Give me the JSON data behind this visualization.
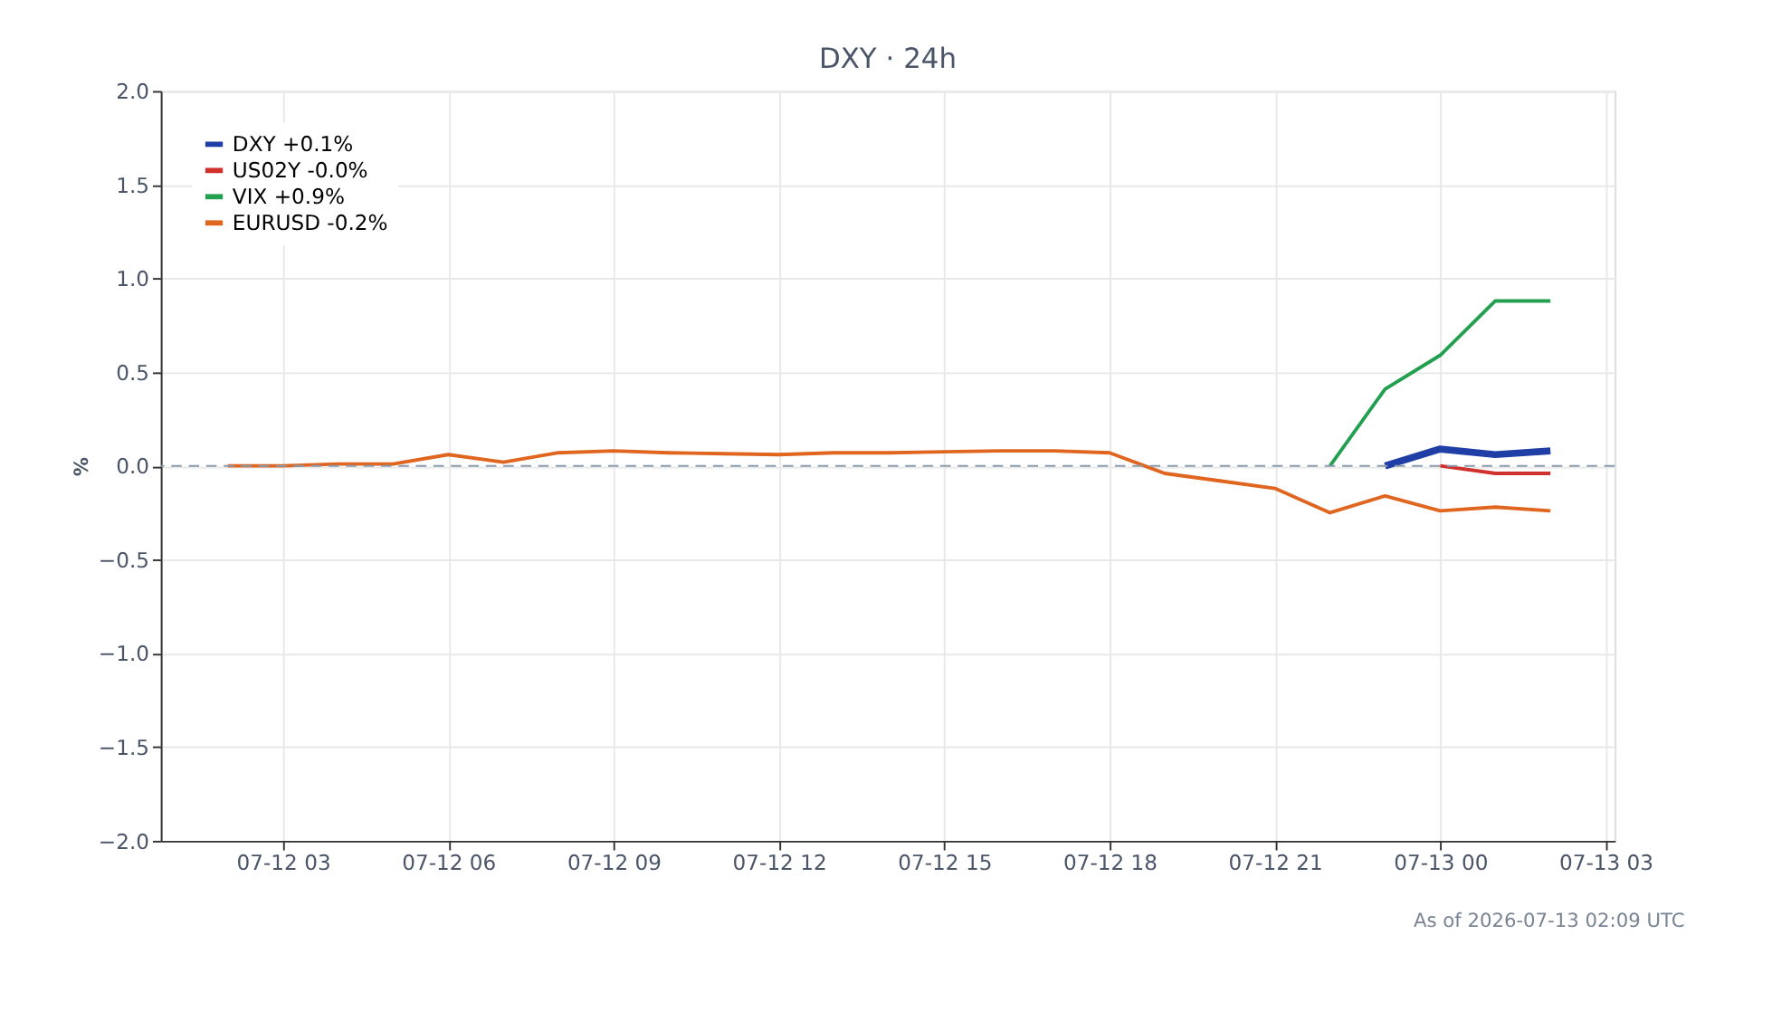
{
  "chart_data": {
    "type": "line",
    "title": "DXY · 24h",
    "ylabel": "%",
    "xlim": [
      "2026-07-12T00:47",
      "2026-07-13T03:10"
    ],
    "ylim": [
      -2.0,
      2.0
    ],
    "yticks": [
      {
        "value": -2.0,
        "label": "−2.0"
      },
      {
        "value": -1.5,
        "label": "−1.5"
      },
      {
        "value": -1.0,
        "label": "−1.0"
      },
      {
        "value": -0.5,
        "label": "−0.5"
      },
      {
        "value": 0,
        "label": "0.0"
      },
      {
        "value": 0.5,
        "label": "0.5"
      },
      {
        "value": 1.0,
        "label": "1.0"
      },
      {
        "value": 1.5,
        "label": "1.5"
      },
      {
        "value": 2.0,
        "label": "2.0"
      }
    ],
    "xticks": [
      {
        "value": "2026-07-12T03:00",
        "label": "07-12 03"
      },
      {
        "value": "2026-07-12T06:00",
        "label": "07-12 06"
      },
      {
        "value": "2026-07-12T09:00",
        "label": "07-12 09"
      },
      {
        "value": "2026-07-12T12:00",
        "label": "07-12 12"
      },
      {
        "value": "2026-07-12T15:00",
        "label": "07-12 15"
      },
      {
        "value": "2026-07-12T18:00",
        "label": "07-12 18"
      },
      {
        "value": "2026-07-12T21:00",
        "label": "07-12 21"
      },
      {
        "value": "2026-07-13T00:00",
        "label": "07-13 00"
      },
      {
        "value": "2026-07-13T03:00",
        "label": "07-13 03"
      }
    ],
    "grid": true,
    "legend": "top left",
    "marker": "none",
    "line_style": "solid",
    "ref_lines": [
      {
        "axis": "y",
        "value": 0,
        "color": "#8a9aaa",
        "line_style": "dashed"
      }
    ],
    "annotations": [
      "As of 2026-07-13 02:09 UTC"
    ],
    "series": [
      {
        "name": "DXY +0.1%",
        "color": "#1f3fa6",
        "x": [
          "2026-07-12T23:00",
          "2026-07-13T00:00",
          "2026-07-13T01:00",
          "2026-07-13T02:00"
        ],
        "values": [
          0.0,
          0.09,
          0.06,
          0.08
        ]
      },
      {
        "name": "US02Y -0.0%",
        "color": "#d0312d",
        "x": [
          "2026-07-13T00:00",
          "2026-07-13T01:00",
          "2026-07-13T02:00"
        ],
        "values": [
          0.0,
          -0.04,
          -0.04
        ]
      },
      {
        "name": "VIX +0.9%",
        "color": "#22a050",
        "x": [
          "2026-07-12T22:00",
          "2026-07-12T23:00",
          "2026-07-13T00:00",
          "2026-07-13T01:00",
          "2026-07-13T02:00"
        ],
        "values": [
          0.0,
          0.41,
          0.59,
          0.88,
          0.88
        ]
      },
      {
        "name": "EURUSD -0.2%",
        "color": "#e0651f",
        "x": [
          "2026-07-12T02:00",
          "2026-07-12T03:00",
          "2026-07-12T04:00",
          "2026-07-12T05:00",
          "2026-07-12T06:00",
          "2026-07-12T07:00",
          "2026-07-12T08:00",
          "2026-07-12T09:00",
          "2026-07-12T10:00",
          "2026-07-12T11:00",
          "2026-07-12T12:00",
          "2026-07-12T13:00",
          "2026-07-12T14:00",
          "2026-07-12T15:00",
          "2026-07-12T16:00",
          "2026-07-12T17:00",
          "2026-07-12T18:00",
          "2026-07-12T19:00",
          "2026-07-12T20:00",
          "2026-07-12T21:00",
          "2026-07-12T22:00",
          "2026-07-12T23:00",
          "2026-07-13T00:00",
          "2026-07-13T01:00",
          "2026-07-13T02:00"
        ],
        "values": [
          0.0,
          0.0,
          0.01,
          0.01,
          0.06,
          0.02,
          0.07,
          0.08,
          0.07,
          0.065,
          0.06,
          0.07,
          0.07,
          0.075,
          0.08,
          0.08,
          0.07,
          -0.04,
          -0.08,
          -0.12,
          -0.25,
          -0.16,
          -0.24,
          -0.22,
          -0.24
        ]
      }
    ]
  }
}
